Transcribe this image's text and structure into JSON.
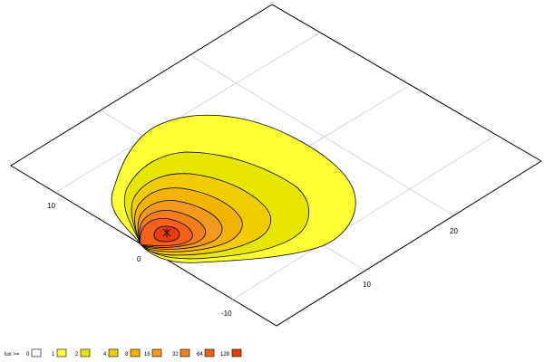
{
  "chart_data": {
    "type": "contour",
    "quantity_label": "lux >=",
    "levels": [
      {
        "value": "0",
        "color": "#ffffff"
      },
      {
        "value": "1",
        "color": "#ffff33"
      },
      {
        "value": "2",
        "color": "#e6e600"
      },
      {
        "value": "4",
        "color": "#f2cc00"
      },
      {
        "value": "8",
        "color": "#f2b400"
      },
      {
        "value": "16",
        "color": "#f29a1a"
      },
      {
        "value": "32",
        "color": "#f27f1a"
      },
      {
        "value": "64",
        "color": "#f2601a"
      },
      {
        "value": "128",
        "color": "#e63c10"
      }
    ],
    "axes": {
      "y_ticks": [
        "10",
        "0",
        "-10"
      ],
      "x_ticks": [
        "10",
        "20"
      ]
    },
    "grid": true,
    "legend_placement": "bottom-left"
  }
}
